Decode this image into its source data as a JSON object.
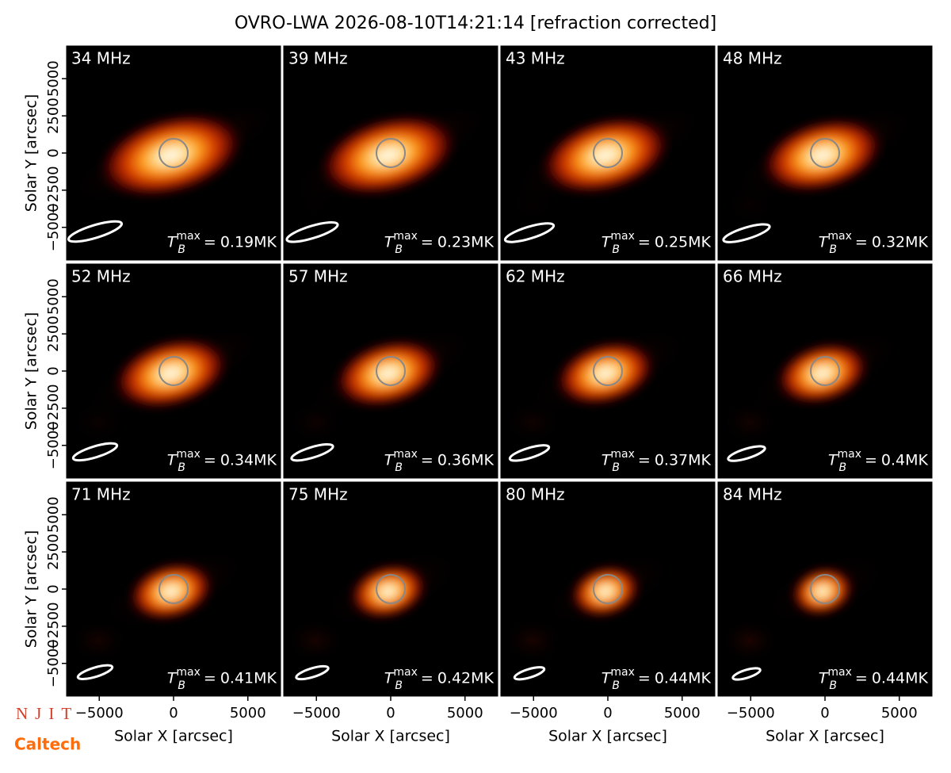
{
  "chart_data": {
    "type": "image-grid",
    "title": "OVRO-LWA 2026-08-10T14:21:14 [refraction corrected]",
    "xlabel": "Solar X [arcsec]",
    "ylabel": "Solar Y [arcsec]",
    "xlim": [
      -7200,
      7200
    ],
    "ylim": [
      -7200,
      7200
    ],
    "xticks": [
      {
        "value": -5000,
        "label": "−5000"
      },
      0,
      5000
    ],
    "yticks": [
      {
        "value": -5000,
        "label": "−5000"
      },
      {
        "value": -2500,
        "label": "−2500"
      },
      0,
      2500,
      5000
    ],
    "tb_symbol": "T",
    "tb_sub": "B",
    "tb_sup": "max",
    "tb_eq": "=",
    "panels": [
      {
        "label": "34 MHz",
        "tb_max": "0.19MK"
      },
      {
        "label": "39 MHz",
        "tb_max": "0.23MK"
      },
      {
        "label": "43 MHz",
        "tb_max": "0.25MK"
      },
      {
        "label": "48 MHz",
        "tb_max": "0.32MK"
      },
      {
        "label": "52 MHz",
        "tb_max": "0.34MK"
      },
      {
        "label": "57 MHz",
        "tb_max": "0.36MK"
      },
      {
        "label": "62 MHz",
        "tb_max": "0.37MK"
      },
      {
        "label": "66 MHz",
        "tb_max": "0.4MK"
      },
      {
        "label": "71 MHz",
        "tb_max": "0.41MK"
      },
      {
        "label": "75 MHz",
        "tb_max": "0.42MK"
      },
      {
        "label": "80 MHz",
        "tb_max": "0.44MK"
      },
      {
        "label": "84 MHz",
        "tb_max": "0.44MK"
      }
    ],
    "logos": [
      "NJIT",
      "Caltech"
    ]
  }
}
